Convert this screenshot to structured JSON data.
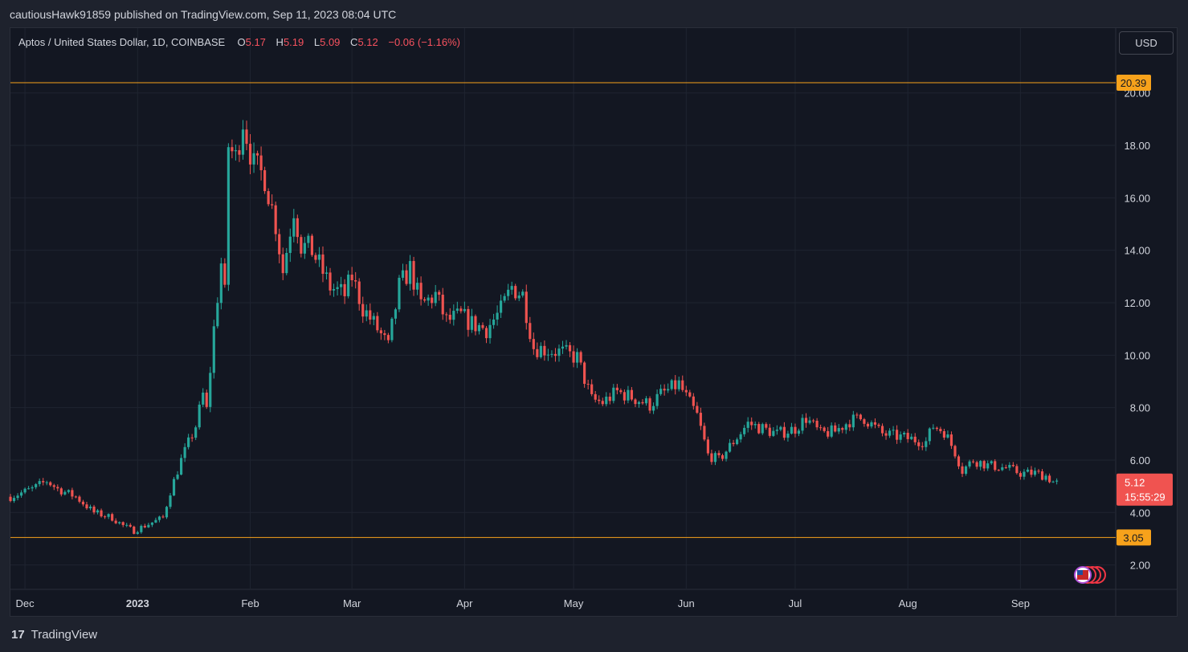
{
  "header": {
    "published_line": "cautiousHawk91859 published on TradingView.com, Sep 11, 2023 08:04 UTC"
  },
  "legend": {
    "symbol": "Aptos / United States Dollar, 1D, COINBASE",
    "o_label": "O",
    "o_value": "5.17",
    "h_label": "H",
    "h_value": "5.19",
    "l_label": "L",
    "l_value": "5.09",
    "c_label": "C",
    "c_value": "5.12",
    "change": "−0.06 (−1.16%)"
  },
  "currency_button": "USD",
  "footer": {
    "logo_glyph": "17",
    "brand": "TradingView"
  },
  "colors": {
    "up": "#26a69a",
    "down": "#ef5350",
    "level": "#f7a21b",
    "background": "#131722"
  },
  "chart_data": {
    "type": "candlestick",
    "symbol": "Aptos / United States Dollar",
    "interval": "1D",
    "exchange": "COINBASE",
    "y_ticks": [
      2,
      4,
      6,
      8,
      10,
      12,
      14,
      16,
      18,
      20
    ],
    "y_tick_labels": [
      "2.00",
      "4.00",
      "6.00",
      "8.00",
      "10.00",
      "12.00",
      "14.00",
      "16.00",
      "18.00",
      "20.00"
    ],
    "ylim": [
      1.1,
      21.4
    ],
    "x_ticks": [
      {
        "date": "2022-12-01",
        "label": "Dec"
      },
      {
        "date": "2023-01-01",
        "label": "2023"
      },
      {
        "date": "2023-02-01",
        "label": "Feb"
      },
      {
        "date": "2023-03-01",
        "label": "Mar"
      },
      {
        "date": "2023-04-01",
        "label": "Apr"
      },
      {
        "date": "2023-05-01",
        "label": "May"
      },
      {
        "date": "2023-06-01",
        "label": "Jun"
      },
      {
        "date": "2023-07-01",
        "label": "Jul"
      },
      {
        "date": "2023-08-01",
        "label": "Aug"
      },
      {
        "date": "2023-09-01",
        "label": "Sep"
      }
    ],
    "xlim": [
      "2022-11-27",
      "2023-09-27"
    ],
    "horizontal_lines": [
      {
        "value": 20.39,
        "label": "20.39"
      },
      {
        "value": 3.05,
        "label": "3.05"
      }
    ],
    "last_price": {
      "value": 5.12,
      "label": "5.12",
      "countdown": "15:55:29"
    },
    "close_path": [
      [
        "2022-11-27",
        4.6
      ],
      [
        "2022-12-03",
        4.9
      ],
      [
        "2022-12-07",
        5.2
      ],
      [
        "2022-12-10",
        4.9
      ],
      [
        "2022-12-15",
        4.6
      ],
      [
        "2022-12-20",
        4.0
      ],
      [
        "2022-12-25",
        3.8
      ],
      [
        "2022-12-28",
        3.5
      ],
      [
        "2022-12-31",
        3.3
      ],
      [
        "2023-01-03",
        3.5
      ],
      [
        "2023-01-08",
        3.8
      ],
      [
        "2023-01-10",
        4.8
      ],
      [
        "2023-01-13",
        6.0
      ],
      [
        "2023-01-17",
        7.3
      ],
      [
        "2023-01-19",
        8.5
      ],
      [
        "2023-01-20",
        7.9
      ],
      [
        "2023-01-22",
        11.0
      ],
      [
        "2023-01-24",
        13.5
      ],
      [
        "2023-01-25",
        12.3
      ],
      [
        "2023-01-26",
        18.0
      ],
      [
        "2023-01-28",
        17.5
      ],
      [
        "2023-01-30",
        19.0
      ],
      [
        "2023-02-02",
        17.2
      ],
      [
        "2023-02-05",
        16.8
      ],
      [
        "2023-02-08",
        15.0
      ],
      [
        "2023-02-10",
        13.2
      ],
      [
        "2023-02-13",
        15.6
      ],
      [
        "2023-02-15",
        14.2
      ],
      [
        "2023-02-18",
        14.0
      ],
      [
        "2023-02-23",
        12.6
      ],
      [
        "2023-02-27",
        12.3
      ],
      [
        "2023-03-01",
        13.0
      ],
      [
        "2023-03-04",
        11.8
      ],
      [
        "2023-03-08",
        11.0
      ],
      [
        "2023-03-11",
        10.3
      ],
      [
        "2023-03-14",
        12.6
      ],
      [
        "2023-03-17",
        13.3
      ],
      [
        "2023-03-20",
        11.9
      ],
      [
        "2023-03-24",
        12.3
      ],
      [
        "2023-03-27",
        11.3
      ],
      [
        "2023-03-31",
        11.5
      ],
      [
        "2023-04-03",
        11.2
      ],
      [
        "2023-04-07",
        11.0
      ],
      [
        "2023-04-11",
        11.7
      ],
      [
        "2023-04-14",
        12.6
      ],
      [
        "2023-04-17",
        12.3
      ],
      [
        "2023-04-20",
        10.3
      ],
      [
        "2023-04-24",
        10.2
      ],
      [
        "2023-04-28",
        10.1
      ],
      [
        "2023-05-02",
        9.9
      ],
      [
        "2023-05-06",
        8.3
      ],
      [
        "2023-05-09",
        8.2
      ],
      [
        "2023-05-13",
        8.6
      ],
      [
        "2023-05-17",
        8.4
      ],
      [
        "2023-05-22",
        8.1
      ],
      [
        "2023-05-25",
        8.5
      ],
      [
        "2023-05-30",
        8.9
      ],
      [
        "2023-06-01",
        8.4
      ],
      [
        "2023-06-04",
        7.7
      ],
      [
        "2023-06-07",
        6.2
      ],
      [
        "2023-06-10",
        6.0
      ],
      [
        "2023-06-14",
        6.7
      ],
      [
        "2023-06-18",
        7.4
      ],
      [
        "2023-06-22",
        7.2
      ],
      [
        "2023-06-26",
        7.0
      ],
      [
        "2023-07-01",
        7.2
      ],
      [
        "2023-07-04",
        7.6
      ],
      [
        "2023-07-08",
        7.0
      ],
      [
        "2023-07-12",
        7.1
      ],
      [
        "2023-07-16",
        7.5
      ],
      [
        "2023-07-20",
        7.6
      ],
      [
        "2023-07-25",
        7.0
      ],
      [
        "2023-07-29",
        6.9
      ],
      [
        "2023-08-02",
        6.8
      ],
      [
        "2023-08-06",
        6.7
      ],
      [
        "2023-08-08",
        7.3
      ],
      [
        "2023-08-11",
        7.1
      ],
      [
        "2023-08-14",
        6.3
      ],
      [
        "2023-08-16",
        5.6
      ],
      [
        "2023-08-19",
        6.0
      ],
      [
        "2023-08-23",
        5.8
      ],
      [
        "2023-08-28",
        5.7
      ],
      [
        "2023-09-01",
        5.5
      ],
      [
        "2023-09-05",
        5.5
      ],
      [
        "2023-09-08",
        5.4
      ],
      [
        "2023-09-10",
        5.17
      ],
      [
        "2023-09-11",
        5.12
      ]
    ]
  }
}
